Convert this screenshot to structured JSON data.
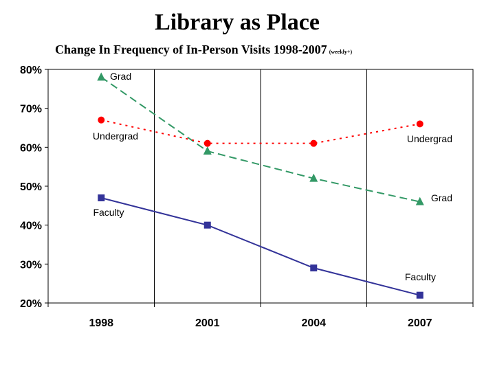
{
  "title": "Library as Place",
  "subtitle": "Change In Frequency of In-Person Visits 1998-2007",
  "subtitle_note": "(weekly+)",
  "chart_data": {
    "type": "line",
    "categories": [
      "1998",
      "2001",
      "2004",
      "2007"
    ],
    "ylim": [
      20,
      80
    ],
    "yticks": [
      20,
      30,
      40,
      50,
      60,
      70,
      80
    ],
    "ytick_labels": [
      "20%",
      "30%",
      "40%",
      "50%",
      "60%",
      "70%",
      "80%"
    ],
    "grid": "vertical lines at categories",
    "legend": "none (series labeled inline)",
    "series": [
      {
        "name": "Grad",
        "values": [
          78,
          59,
          52,
          46
        ],
        "color": "#339966",
        "line_style": "dashed",
        "marker": "triangle",
        "labels": [
          "Grad",
          "Grad"
        ]
      },
      {
        "name": "Undergrad",
        "values": [
          67,
          61,
          61,
          66
        ],
        "color": "#ff0000",
        "line_style": "dotted",
        "marker": "circle",
        "labels": [
          "Undergrad",
          "Undergrad"
        ]
      },
      {
        "name": "Faculty",
        "values": [
          47,
          40,
          29,
          22
        ],
        "color": "#333399",
        "line_style": "solid",
        "marker": "square",
        "labels": [
          "Faculty",
          "Faculty"
        ]
      }
    ]
  }
}
